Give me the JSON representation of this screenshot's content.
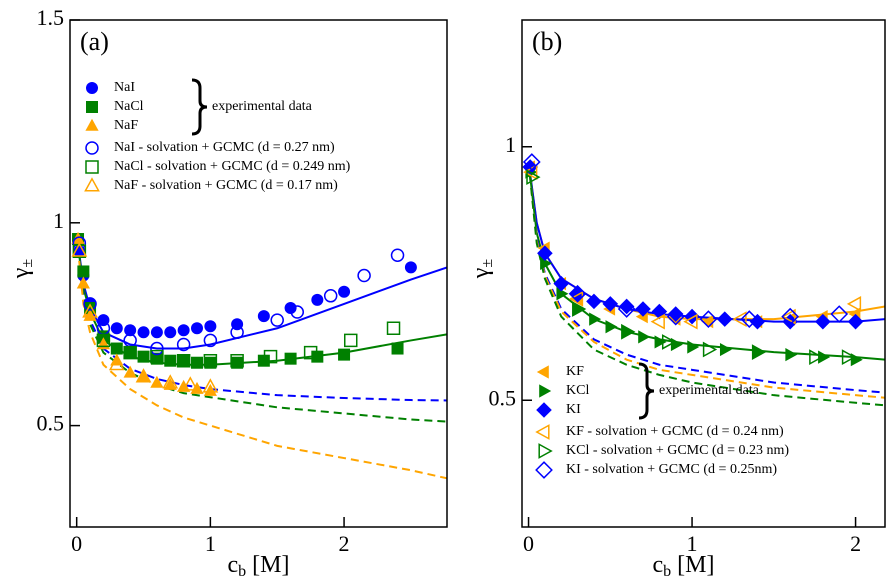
{
  "chart_data": [
    {
      "type": "scatter",
      "title": "(a)",
      "xlabel": "c",
      "xlabel_sub": "b",
      "xlabel_unit": "[M]",
      "ylabel": "γ",
      "ylabel_sub": "±",
      "xlim": [
        -0.05,
        2.77
      ],
      "ylim": [
        0.25,
        1.5
      ],
      "xticks": [
        0,
        1,
        2
      ],
      "yticks": [
        0.5,
        1,
        1.5
      ],
      "legend": "upper left",
      "annotation": "experimental data",
      "series": [
        {
          "name": "NaI",
          "color": "#0000ff",
          "marker": "circle",
          "filled": true,
          "x": [
            0.01,
            0.02,
            0.05,
            0.1,
            0.2,
            0.3,
            0.4,
            0.5,
            0.6,
            0.7,
            0.8,
            0.9,
            1.0,
            1.2,
            1.4,
            1.6,
            1.8,
            2.0,
            2.5
          ],
          "values": [
            0.96,
            0.93,
            0.87,
            0.8,
            0.76,
            0.74,
            0.735,
            0.73,
            0.73,
            0.73,
            0.735,
            0.74,
            0.745,
            0.75,
            0.77,
            0.79,
            0.81,
            0.83,
            0.89
          ]
        },
        {
          "name": "NaCl",
          "color": "#008000",
          "marker": "square",
          "filled": true,
          "x": [
            0.01,
            0.05,
            0.1,
            0.2,
            0.3,
            0.4,
            0.5,
            0.6,
            0.7,
            0.8,
            0.9,
            1.0,
            1.2,
            1.4,
            1.6,
            1.8,
            2.0,
            2.4
          ],
          "values": [
            0.96,
            0.88,
            0.79,
            0.72,
            0.69,
            0.68,
            0.67,
            0.665,
            0.66,
            0.66,
            0.655,
            0.655,
            0.655,
            0.66,
            0.665,
            0.67,
            0.675,
            0.69
          ]
        },
        {
          "name": "NaF",
          "color": "#ffa500",
          "marker": "triangle-up",
          "filled": true,
          "x": [
            0.01,
            0.05,
            0.1,
            0.2,
            0.3,
            0.4,
            0.5,
            0.6,
            0.7,
            0.8,
            0.9,
            1.0
          ],
          "values": [
            0.96,
            0.85,
            0.77,
            0.7,
            0.66,
            0.63,
            0.62,
            0.605,
            0.6,
            0.595,
            0.59,
            0.585
          ]
        },
        {
          "name": "NaI - solvation + GCMC (d = 0.27 nm)",
          "color": "#0000ff",
          "marker": "circle",
          "filled": false,
          "x": [
            0.02,
            0.1,
            0.2,
            0.4,
            0.6,
            0.8,
            1.0,
            1.2,
            1.5,
            1.65,
            1.9,
            2.15,
            2.4
          ],
          "values": [
            0.95,
            0.8,
            0.74,
            0.71,
            0.69,
            0.7,
            0.71,
            0.73,
            0.76,
            0.78,
            0.82,
            0.87,
            0.92
          ]
        },
        {
          "name": "NaCl - solvation + GCMC (d = 0.249 nm)",
          "color": "#008000",
          "marker": "square",
          "filled": false,
          "x": [
            0.02,
            0.2,
            0.4,
            0.6,
            0.8,
            1.0,
            1.2,
            1.45,
            1.75,
            2.05,
            2.37
          ],
          "values": [
            0.93,
            0.71,
            0.68,
            0.67,
            0.66,
            0.66,
            0.66,
            0.67,
            0.68,
            0.71,
            0.74
          ]
        },
        {
          "name": "NaF - solvation + GCMC (d = 0.17 nm)",
          "color": "#ffa500",
          "marker": "triangle-up",
          "filled": false,
          "x": [
            0.02,
            0.1,
            0.3,
            0.5,
            0.7,
            0.85,
            1.0
          ],
          "values": [
            0.93,
            0.78,
            0.65,
            0.62,
            0.605,
            0.6,
            0.595
          ]
        }
      ],
      "curves": [
        {
          "color": "#0000ff",
          "dashed": false,
          "x": [
            0,
            0.05,
            0.1,
            0.2,
            0.4,
            0.6,
            0.8,
            1.0,
            1.5,
            2.0,
            2.5,
            2.77
          ],
          "values": [
            0.97,
            0.85,
            0.79,
            0.73,
            0.7,
            0.69,
            0.69,
            0.7,
            0.74,
            0.8,
            0.86,
            0.89
          ]
        },
        {
          "color": "#008000",
          "dashed": false,
          "x": [
            0,
            0.05,
            0.1,
            0.2,
            0.4,
            0.6,
            0.8,
            1.0,
            1.5,
            2.0,
            2.5,
            2.77
          ],
          "values": [
            0.97,
            0.84,
            0.78,
            0.71,
            0.67,
            0.655,
            0.65,
            0.65,
            0.66,
            0.68,
            0.71,
            0.725
          ]
        },
        {
          "color": "#0000ff",
          "dashed": true,
          "x": [
            0,
            0.05,
            0.1,
            0.2,
            0.4,
            0.6,
            0.8,
            1.0,
            1.5,
            2.0,
            2.5,
            2.77
          ],
          "values": [
            0.97,
            0.83,
            0.76,
            0.69,
            0.64,
            0.615,
            0.6,
            0.59,
            0.575,
            0.568,
            0.563,
            0.562
          ]
        },
        {
          "color": "#008000",
          "dashed": true,
          "x": [
            0,
            0.05,
            0.1,
            0.2,
            0.4,
            0.6,
            0.8,
            1.0,
            1.5,
            2.0,
            2.5,
            2.77
          ],
          "values": [
            0.97,
            0.82,
            0.75,
            0.68,
            0.63,
            0.6,
            0.58,
            0.57,
            0.545,
            0.53,
            0.515,
            0.51
          ]
        },
        {
          "color": "#ffa500",
          "dashed": true,
          "x": [
            0,
            0.05,
            0.1,
            0.2,
            0.4,
            0.6,
            0.8,
            1.0,
            1.5,
            2.0,
            2.5,
            2.77
          ],
          "values": [
            0.97,
            0.8,
            0.73,
            0.65,
            0.59,
            0.55,
            0.52,
            0.5,
            0.45,
            0.42,
            0.39,
            0.37
          ]
        }
      ]
    },
    {
      "type": "scatter",
      "title": "(b)",
      "xlabel": "c",
      "xlabel_sub": "b",
      "xlabel_unit": "[M]",
      "ylabel": "γ",
      "ylabel_sub": "±",
      "xlim": [
        -0.04,
        2.18
      ],
      "ylim": [
        0.25,
        1.25
      ],
      "xticks": [
        0,
        1,
        2
      ],
      "yticks": [
        0.5,
        1
      ],
      "legend": "lower left",
      "annotation": "experimental data",
      "series": [
        {
          "name": "KF",
          "color": "#ffa500",
          "marker": "triangle-left",
          "filled": true,
          "x": [
            0.01,
            0.1,
            0.2,
            0.3,
            0.5,
            0.7,
            0.9,
            1.1,
            1.4,
            1.6,
            1.8,
            2.0
          ],
          "values": [
            0.96,
            0.8,
            0.73,
            0.7,
            0.68,
            0.665,
            0.66,
            0.655,
            0.655,
            0.66,
            0.665,
            0.67
          ]
        },
        {
          "name": "KCl",
          "color": "#008000",
          "marker": "triangle-right",
          "filled": true,
          "x": [
            0.01,
            0.1,
            0.2,
            0.3,
            0.4,
            0.5,
            0.6,
            0.7,
            0.8,
            0.9,
            1.0,
            1.2,
            1.4,
            1.6,
            1.8,
            2.0
          ],
          "values": [
            0.95,
            0.77,
            0.71,
            0.68,
            0.66,
            0.645,
            0.635,
            0.625,
            0.615,
            0.61,
            0.605,
            0.6,
            0.595,
            0.59,
            0.585,
            0.58
          ]
        },
        {
          "name": "KI",
          "color": "#0000ff",
          "marker": "diamond",
          "filled": true,
          "x": [
            0.01,
            0.1,
            0.2,
            0.3,
            0.4,
            0.5,
            0.6,
            0.7,
            0.8,
            0.9,
            1.0,
            1.2,
            1.4,
            1.6,
            1.8,
            2.0
          ],
          "values": [
            0.96,
            0.79,
            0.73,
            0.71,
            0.695,
            0.69,
            0.685,
            0.68,
            0.675,
            0.67,
            0.665,
            0.66,
            0.655,
            0.655,
            0.655,
            0.655
          ]
        },
        {
          "name": "KF - solvation + GCMC (d = 0.24 nm)",
          "color": "#ffa500",
          "marker": "triangle-left",
          "filled": false,
          "x": [
            0.02,
            0.3,
            0.8,
            1.0,
            1.3,
            1.6,
            2.0
          ],
          "values": [
            0.95,
            0.7,
            0.655,
            0.655,
            0.66,
            0.665,
            0.69
          ]
        },
        {
          "name": "KCl - solvation + GCMC (d = 0.23 nm)",
          "color": "#008000",
          "marker": "triangle-right",
          "filled": false,
          "x": [
            0.02,
            0.3,
            0.6,
            0.85,
            1.1,
            1.4,
            1.75,
            1.95
          ],
          "values": [
            0.94,
            0.68,
            0.635,
            0.615,
            0.6,
            0.595,
            0.585,
            0.585
          ]
        },
        {
          "name": "KI - solvation + GCMC (d = 0.25nm)",
          "color": "#0000ff",
          "marker": "diamond",
          "filled": false,
          "x": [
            0.02,
            0.3,
            0.6,
            0.9,
            1.1,
            1.35,
            1.6,
            1.9
          ],
          "values": [
            0.97,
            0.71,
            0.68,
            0.665,
            0.66,
            0.66,
            0.665,
            0.67
          ]
        }
      ],
      "curves": [
        {
          "color": "#ffa500",
          "dashed": false,
          "x": [
            0,
            0.05,
            0.1,
            0.2,
            0.4,
            0.6,
            0.8,
            1.0,
            1.5,
            2.0,
            2.18
          ],
          "values": [
            0.97,
            0.85,
            0.79,
            0.74,
            0.7,
            0.68,
            0.665,
            0.66,
            0.66,
            0.675,
            0.685
          ]
        },
        {
          "color": "#0000ff",
          "dashed": false,
          "x": [
            0,
            0.05,
            0.1,
            0.2,
            0.4,
            0.6,
            0.8,
            1.0,
            1.5,
            2.0,
            2.18
          ],
          "values": [
            0.97,
            0.85,
            0.79,
            0.74,
            0.7,
            0.68,
            0.67,
            0.665,
            0.655,
            0.655,
            0.66
          ]
        },
        {
          "color": "#008000",
          "dashed": false,
          "x": [
            0,
            0.05,
            0.1,
            0.2,
            0.4,
            0.6,
            0.8,
            1.0,
            1.5,
            2.0,
            2.18
          ],
          "values": [
            0.97,
            0.83,
            0.77,
            0.71,
            0.66,
            0.635,
            0.62,
            0.61,
            0.595,
            0.585,
            0.58
          ]
        },
        {
          "color": "#0000ff",
          "dashed": true,
          "x": [
            0,
            0.05,
            0.1,
            0.2,
            0.4,
            0.6,
            0.8,
            1.0,
            1.5,
            2.0,
            2.18
          ],
          "values": [
            0.97,
            0.82,
            0.75,
            0.68,
            0.62,
            0.59,
            0.57,
            0.56,
            0.535,
            0.52,
            0.515
          ]
        },
        {
          "color": "#ffa500",
          "dashed": true,
          "x": [
            0,
            0.05,
            0.1,
            0.2,
            0.4,
            0.6,
            0.8,
            1.0,
            1.5,
            2.0,
            2.18
          ],
          "values": [
            0.97,
            0.815,
            0.745,
            0.675,
            0.615,
            0.58,
            0.56,
            0.55,
            0.525,
            0.51,
            0.505
          ]
        },
        {
          "color": "#008000",
          "dashed": true,
          "x": [
            0,
            0.05,
            0.1,
            0.2,
            0.4,
            0.6,
            0.8,
            1.0,
            1.5,
            2.0,
            2.18
          ],
          "values": [
            0.97,
            0.81,
            0.74,
            0.665,
            0.6,
            0.57,
            0.55,
            0.535,
            0.51,
            0.495,
            0.49
          ]
        }
      ]
    }
  ]
}
